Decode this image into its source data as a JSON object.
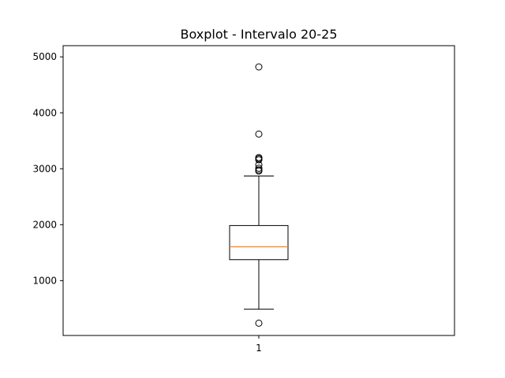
{
  "chart_data": {
    "type": "boxplot",
    "title": "Boxplot - Intervalo 20-25",
    "xlabel": "",
    "ylabel": "",
    "categories": [
      "1"
    ],
    "ylim": [
      20,
      5200
    ],
    "yticks": [
      1000,
      2000,
      3000,
      4000,
      5000
    ],
    "grid": false,
    "boxes": [
      {
        "category": "1",
        "whisker_low": 490,
        "q1": 1375,
        "median": 1605,
        "q3": 1985,
        "whisker_high": 2870,
        "outliers": [
          240,
          2960,
          2980,
          3010,
          3070,
          3160,
          3180,
          3200,
          3620,
          4820
        ]
      }
    ],
    "colors": {
      "box": "#000000",
      "median": "#ff7f0e",
      "outlier": "#000000"
    }
  }
}
